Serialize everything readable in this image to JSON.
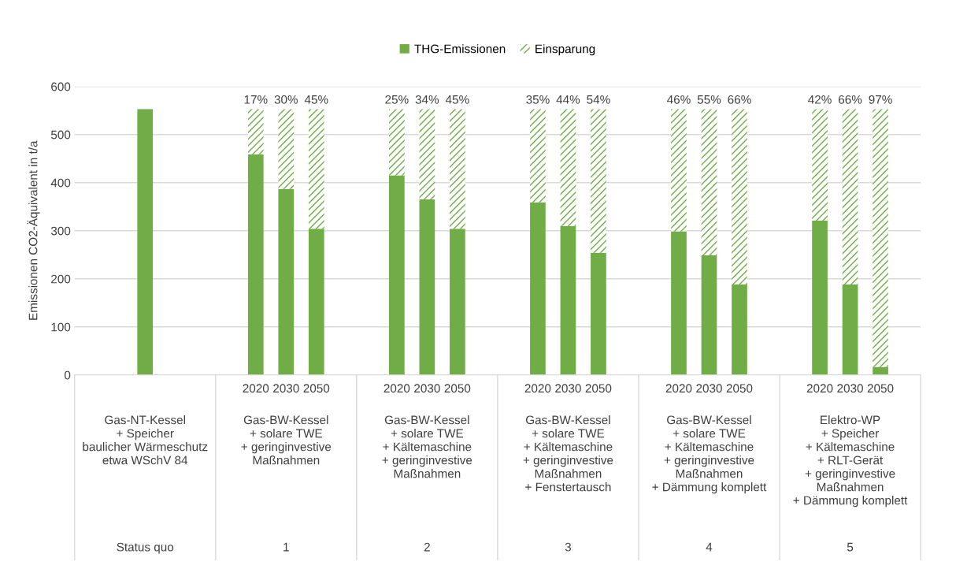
{
  "chart_data": {
    "type": "bar",
    "stacked": true,
    "ylabel": "Emissionen CO2-Äquivalent in t/a",
    "categories": [
      null,
      null,
      null,
      "2020",
      "2030",
      "2050",
      "2020",
      "2030",
      "2050",
      "2020",
      "2030",
      "2050",
      "2020",
      "2030",
      "2050",
      "2020",
      "2030",
      "2050"
    ],
    "series": [
      {
        "name": "THG-Emissionen",
        "color": "#70ad47",
        "values": [
          null,
          553,
          null,
          459,
          387,
          304,
          415,
          365,
          304,
          359,
          310,
          254,
          299,
          249,
          188,
          321,
          188,
          17
        ]
      },
      {
        "name": "Einsparung",
        "color": "#70ad47",
        "values": [
          null,
          0,
          null,
          94,
          166,
          249,
          138,
          188,
          249,
          194,
          243,
          299,
          254,
          304,
          365,
          232,
          365,
          536
        ]
      }
    ],
    "ylim": [
      0,
      600
    ],
    "yticks": [
      0,
      100,
      200,
      300,
      400,
      500,
      600
    ],
    "grid": "y",
    "legend": "top",
    "annotations": [
      "Gas-NT-Kessel\n+ Speicher\nbaulicher Wärmeschutz\netwa WSchV 84",
      "Gas-BW-Kessel\n+ solare TWE\n+ geringinvestive\nMaßnahmen",
      "Gas-BW-Kessel\n+ solare TWE\n+ Kältemaschine\n+ geringinvestive\nMaßnahmen",
      "Gas-BW-Kessel\n+ solare TWE\n+ Kältemaschine\n+ geringinvestive\nMaßnahmen\n+ Fenstertausch",
      "Gas-BW-Kessel\n+ solare TWE\n+ Kältemaschine\n+ geringinvestive\nMaßnahmen\n+ Dämmung komplett",
      "Elektro-WP\n+ Speicher\n+ Kältemaschine\n+ RLT-Gerät\n+ geringinvestive\nMaßnahmen\n+ Dämmung komplett",
      "Status quo",
      "1",
      "2",
      "3",
      "4",
      "5",
      "17%",
      "30%",
      "45%",
      "25%",
      "34%",
      "45%",
      "35%",
      "44%",
      "54%",
      "46%",
      "55%",
      "66%",
      "42%",
      "66%",
      "97%"
    ]
  }
}
